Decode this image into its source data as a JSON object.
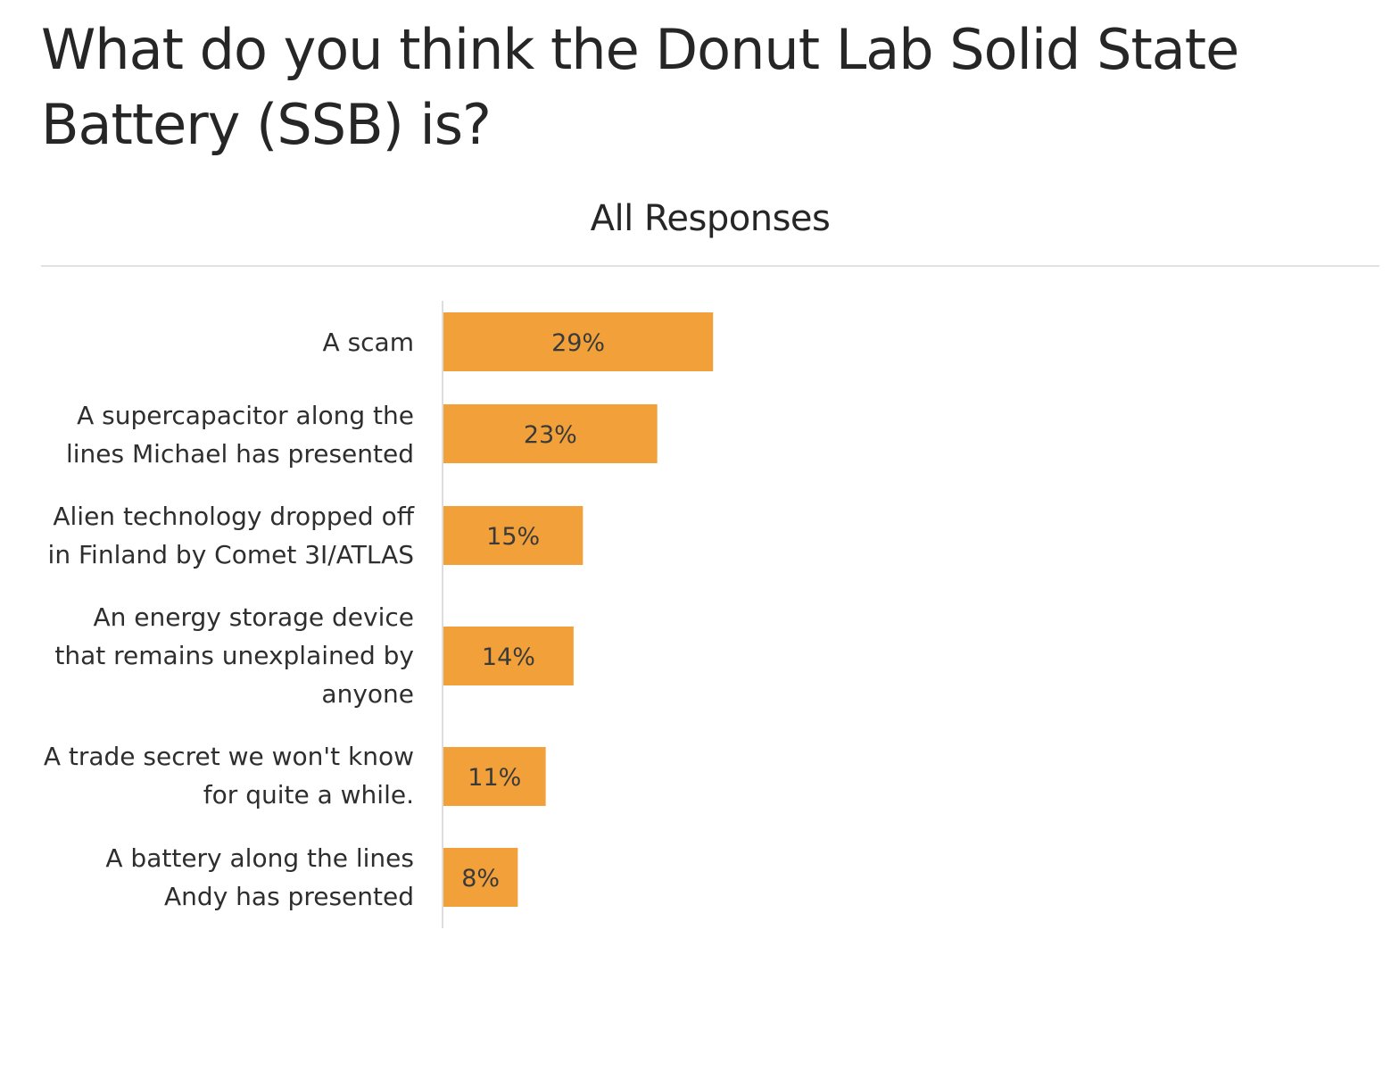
{
  "page": {
    "title": "What do you think the Donut Lab Solid State Battery (SSB) is?"
  },
  "chart_data": {
    "type": "bar",
    "orientation": "horizontal",
    "title": "What do you think the Donut Lab Solid State Battery (SSB) is?",
    "subtitle": "All Responses",
    "categories": [
      "A scam",
      "A supercapacitor along the lines Michael has presented",
      "Alien technology dropped off in Finland by Comet 3I/ATLAS",
      "An energy storage device that remains unexplained by anyone",
      "A trade secret we won't know for quite a while.",
      "A battery along the lines Andy has presented"
    ],
    "values": [
      29,
      23,
      15,
      14,
      11,
      8
    ],
    "labels": [
      "29%",
      "23%",
      "15%",
      "14%",
      "11%",
      "8%"
    ],
    "unit": "%",
    "xlim": [
      0,
      100
    ],
    "bar_color": "#f2a03a",
    "axis_color": "#dcdcdc",
    "grid": false,
    "legend": "none"
  }
}
